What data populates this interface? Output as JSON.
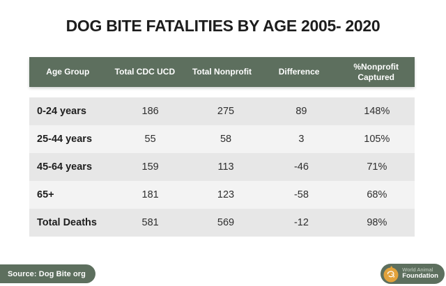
{
  "title": "DOG BITE FATALITIES BY AGE 2005- 2020",
  "table": {
    "columns": [
      "Age Group",
      "Total CDC UCD",
      "Total Nonprofit",
      "Difference",
      "%Nonprofit Captured"
    ],
    "rows": [
      [
        "0-24 years",
        "186",
        "275",
        "89",
        "148%"
      ],
      [
        "25-44 years",
        "55",
        "58",
        "3",
        "105%"
      ],
      [
        "45-64 years",
        "159",
        "113",
        "-46",
        "71%"
      ],
      [
        "65+",
        "181",
        "123",
        "-58",
        "68%"
      ],
      [
        "Total Deaths",
        "581",
        "569",
        "-12",
        "98%"
      ]
    ]
  },
  "footer": {
    "source_label": "Source: Dog Bite org",
    "brand_line1": "World Animal",
    "brand_line2": "Foundation"
  },
  "colors": {
    "header_green": "#5d6f5e",
    "row_dark": "#e7e7e7",
    "row_light": "#f3f3f3",
    "logo_yellow": "#e2a23b",
    "title_text": "#1d1d1d"
  },
  "icons": {
    "dog_logo": "dog-in-circle"
  }
}
